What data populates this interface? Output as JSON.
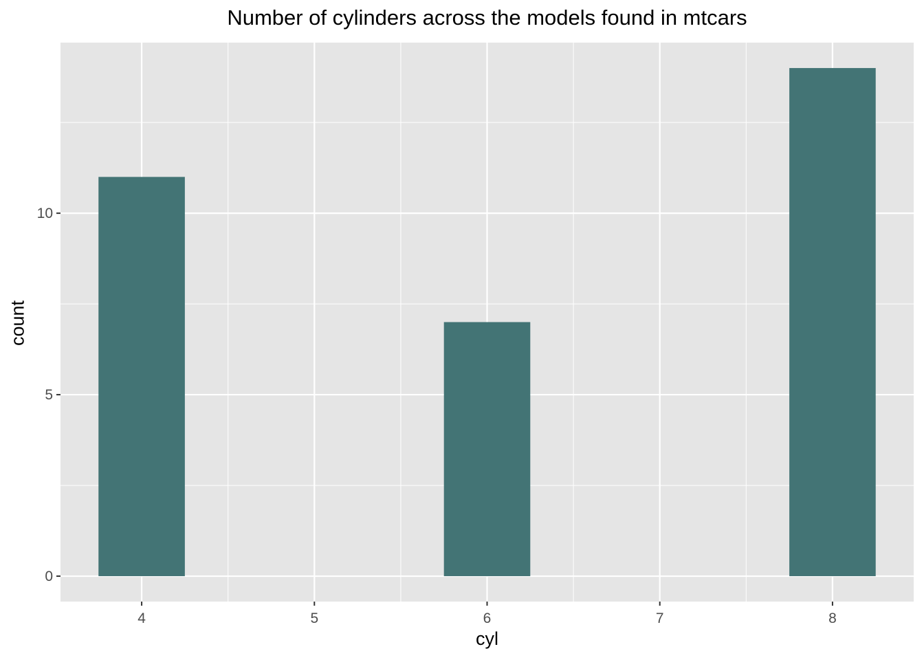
{
  "chart_data": {
    "type": "bar",
    "title": "Number of cylinders across the models found in mtcars",
    "xlabel": "cyl",
    "ylabel": "count",
    "categories": [
      4,
      6,
      8
    ],
    "values": [
      11,
      7,
      14
    ],
    "xlim": [
      3.53,
      8.47
    ],
    "ylim": [
      -0.7,
      14.7
    ],
    "bar_width": 0.5,
    "x_ticks": [
      4,
      5,
      6,
      7,
      8
    ],
    "x_minor_ticks": [
      4.5,
      5.5,
      6.5,
      7.5
    ],
    "y_ticks": [
      0,
      5,
      10
    ],
    "y_minor_ticks": [
      2.5,
      7.5,
      12.5
    ],
    "grid": true,
    "colors": {
      "panel_background": "#e5e5e5",
      "grid_line": "#ffffff",
      "bar_fill": "#437475",
      "tick_label": "#4d4d4d",
      "tick_mark": "#333333"
    }
  }
}
